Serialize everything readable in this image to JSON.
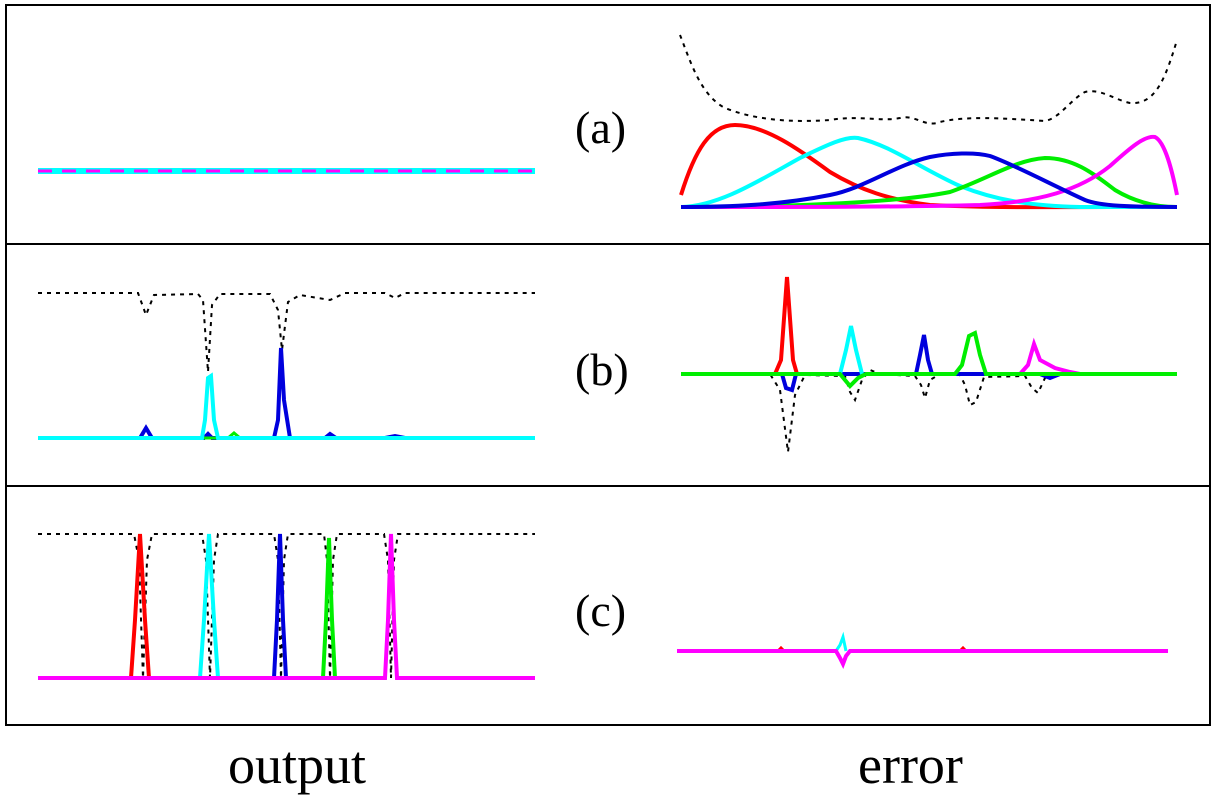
{
  "panel_labels": {
    "a": "(a)",
    "b": "(b)",
    "c": "(c)"
  },
  "column_labels": {
    "output": "output",
    "error": "error"
  },
  "colors": {
    "red": "#ff0000",
    "cyan": "#00ffff",
    "blue": "#0000dd",
    "green": "#00ee00",
    "magenta": "#ff00ff",
    "dotted": "#000000"
  }
}
